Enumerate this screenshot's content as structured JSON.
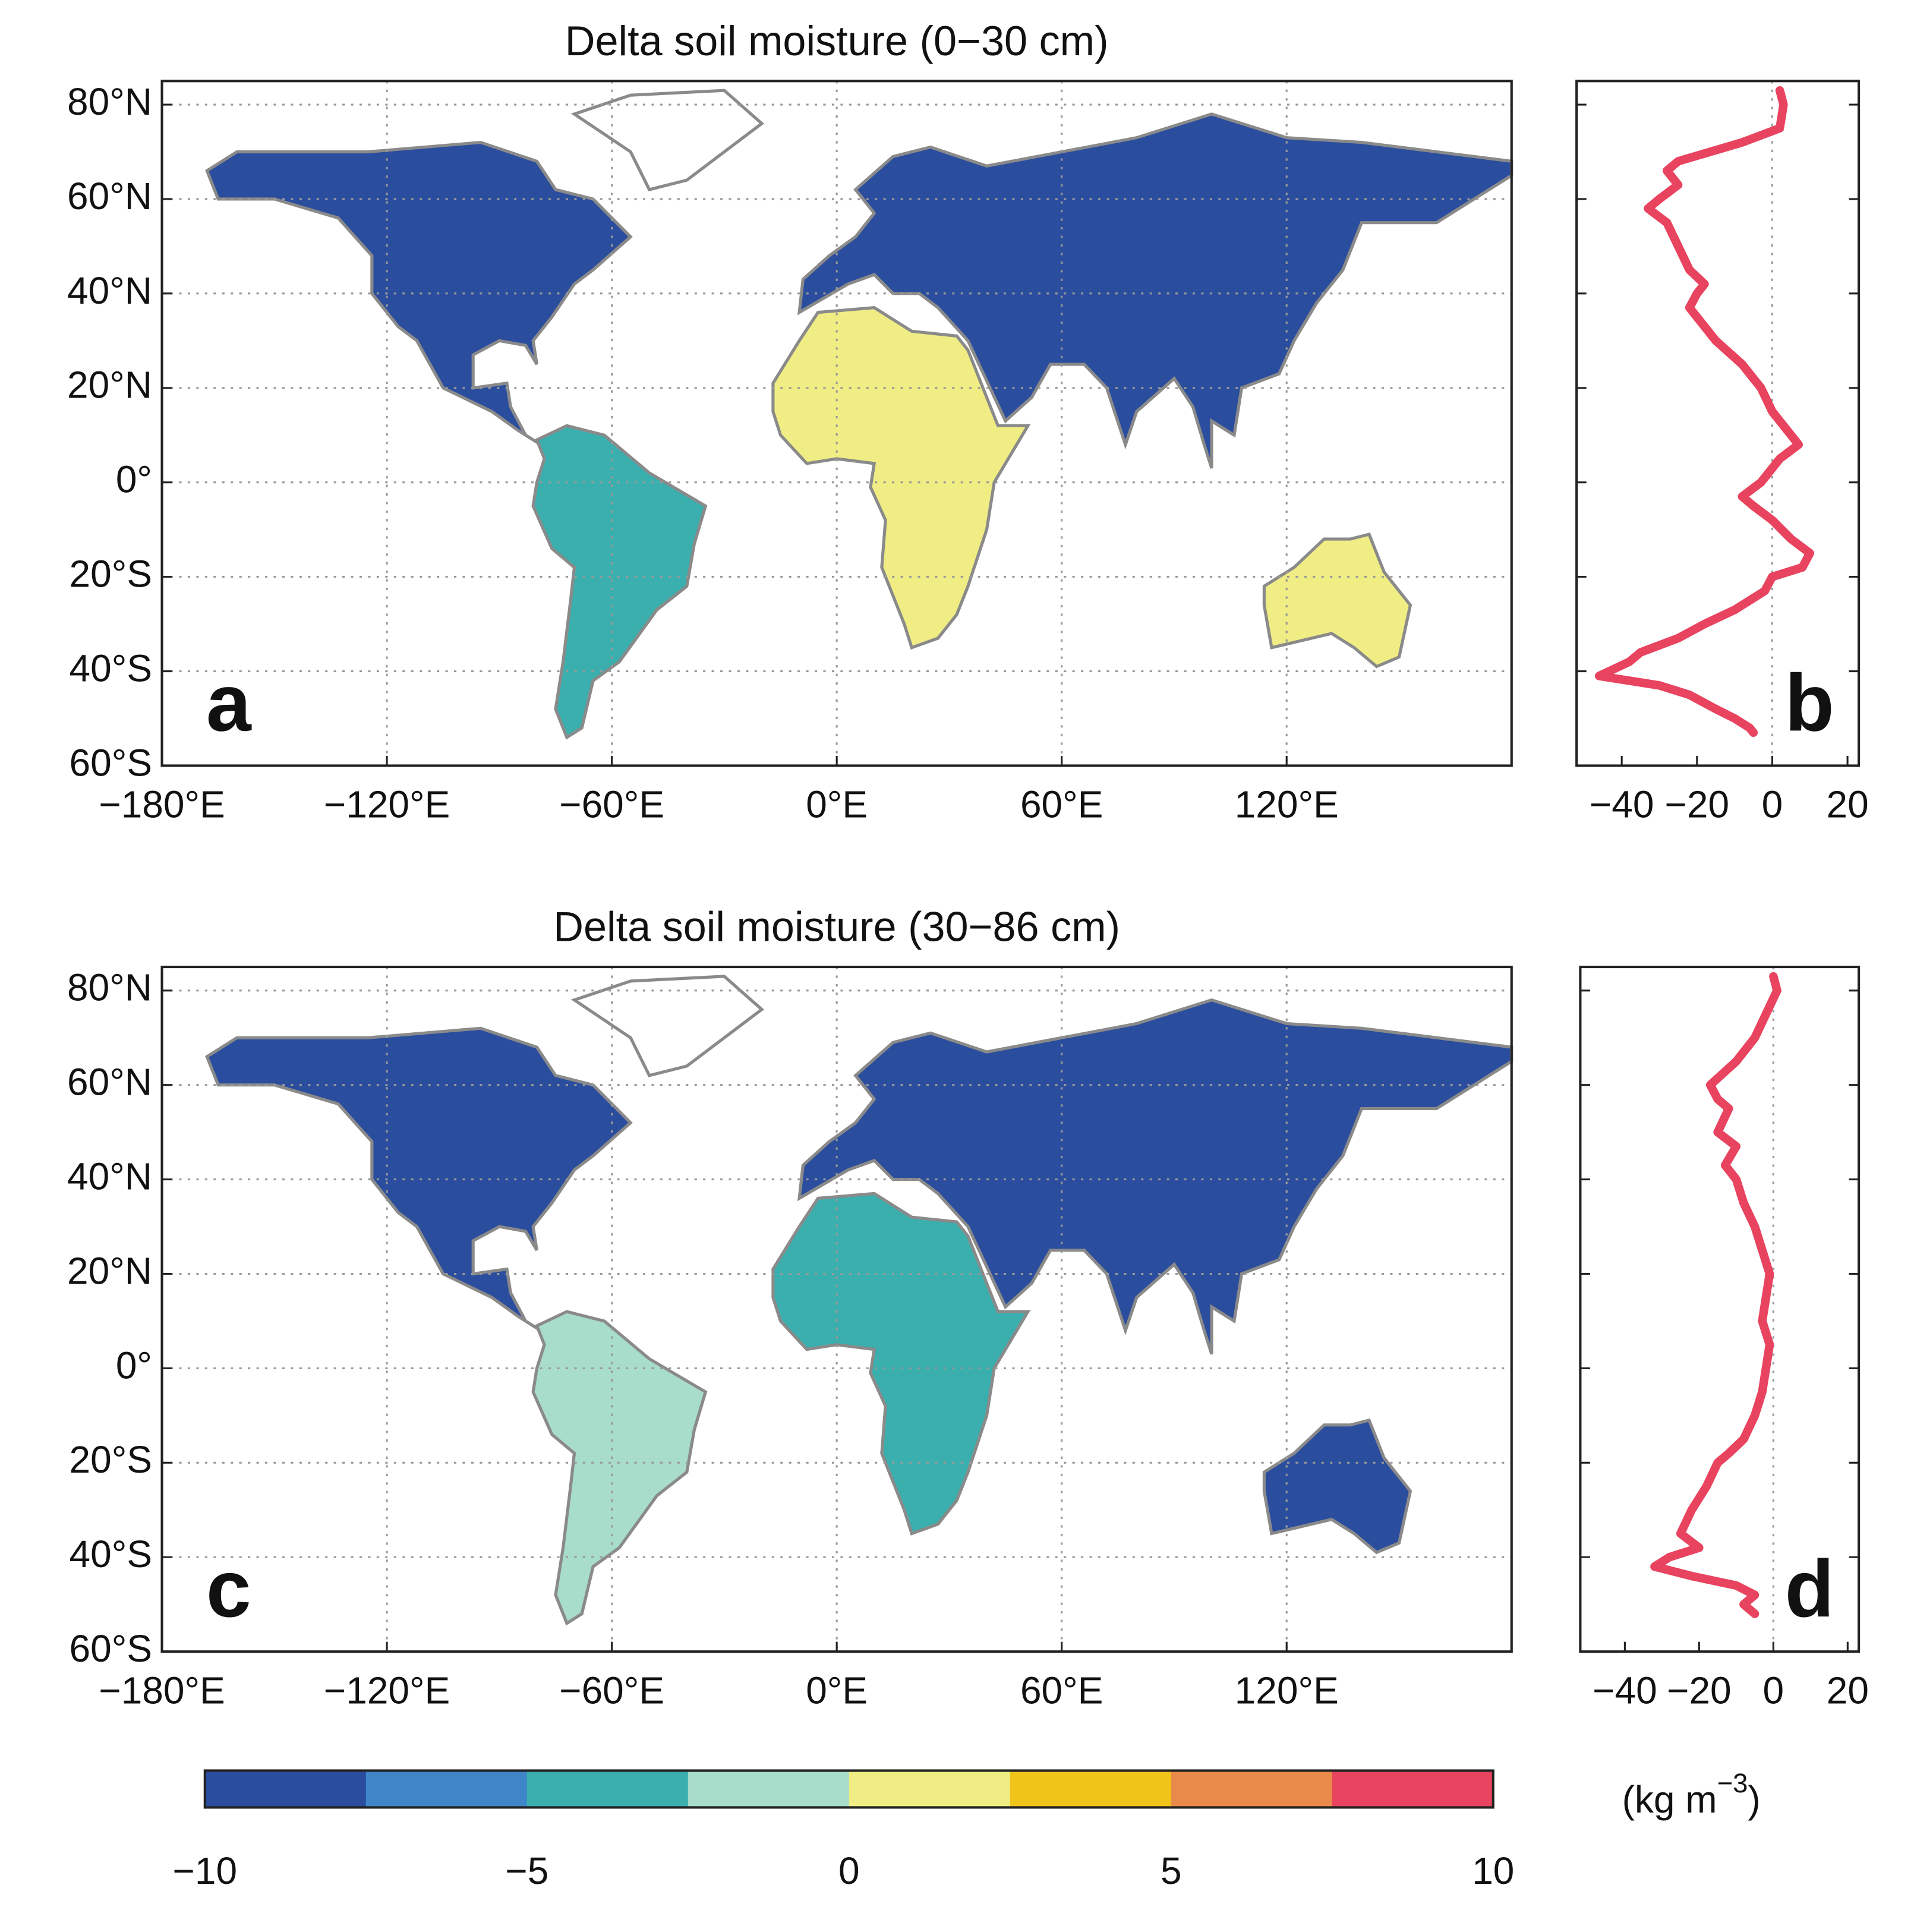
{
  "chart_data": [
    {
      "type": "map",
      "title": "Delta soil moisture (0−30 cm)",
      "panel_label": "a",
      "xlim": [
        -180,
        180
      ],
      "ylim": [
        -60,
        85
      ],
      "xticks": [
        {
          "value": -180,
          "label": "−180°E"
        },
        {
          "value": -120,
          "label": "−120°E"
        },
        {
          "value": -60,
          "label": "−60°E"
        },
        {
          "value": 0,
          "label": "0°E"
        },
        {
          "value": 60,
          "label": "60°E"
        },
        {
          "value": 120,
          "label": "120°E"
        }
      ],
      "yticks": [
        {
          "value": 80,
          "label": "80°N"
        },
        {
          "value": 60,
          "label": "60°N"
        },
        {
          "value": 40,
          "label": "40°N"
        },
        {
          "value": 20,
          "label": "20°N"
        },
        {
          "value": 0,
          "label": "0°"
        },
        {
          "value": -20,
          "label": "20°S"
        },
        {
          "value": -40,
          "label": "40°S"
        },
        {
          "value": -60,
          "label": "60°S"
        }
      ],
      "grid": true
    },
    {
      "type": "line",
      "panel_label": "b",
      "color": "#e8435f",
      "xlim": [
        -52,
        23
      ],
      "ylim": [
        -60,
        85
      ],
      "xticks": [
        {
          "value": -40,
          "label": "−40"
        },
        {
          "value": -20,
          "label": "−20"
        },
        0,
        20
      ],
      "yticks": [
        80,
        60,
        40,
        20,
        0,
        -20,
        -40,
        -60
      ],
      "y": [
        83,
        80,
        75,
        72,
        68,
        66,
        63,
        60,
        58,
        55,
        50,
        45,
        42,
        40,
        37,
        33,
        30,
        25,
        20,
        15,
        10,
        8,
        5,
        0,
        -3,
        -5,
        -8,
        -12,
        -15,
        -18,
        -20,
        -23,
        -27,
        -30,
        -33,
        -36,
        -38,
        -41,
        -43,
        -45,
        -48,
        -50,
        -52,
        -53
      ],
      "values": [
        2,
        3,
        2,
        -8,
        -25,
        -28,
        -25,
        -30,
        -33,
        -28,
        -25,
        -22,
        -18,
        -20,
        -22,
        -18,
        -15,
        -8,
        -3,
        0,
        5,
        7,
        2,
        -3,
        -8,
        -5,
        0,
        5,
        10,
        8,
        0,
        -2,
        -10,
        -18,
        -25,
        -35,
        -38,
        -46,
        -30,
        -22,
        -15,
        -10,
        -6,
        -5
      ]
    },
    {
      "type": "map",
      "title": "Delta soil moisture (30−86 cm)",
      "panel_label": "c",
      "xlim": [
        -180,
        180
      ],
      "ylim": [
        -60,
        85
      ],
      "xticks": [
        {
          "value": -180,
          "label": "−180°E"
        },
        {
          "value": -120,
          "label": "−120°E"
        },
        {
          "value": -60,
          "label": "−60°E"
        },
        {
          "value": 0,
          "label": "0°E"
        },
        {
          "value": 60,
          "label": "60°E"
        },
        {
          "value": 120,
          "label": "120°E"
        }
      ],
      "yticks": [
        {
          "value": 80,
          "label": "80°N"
        },
        {
          "value": 60,
          "label": "60°N"
        },
        {
          "value": 40,
          "label": "40°N"
        },
        {
          "value": 20,
          "label": "20°N"
        },
        {
          "value": 0,
          "label": "0°"
        },
        {
          "value": -20,
          "label": "20°S"
        },
        {
          "value": -40,
          "label": "40°S"
        },
        {
          "value": -60,
          "label": "60°S"
        }
      ],
      "grid": true
    },
    {
      "type": "line",
      "panel_label": "d",
      "color": "#e8435f",
      "xlim": [
        -52,
        23
      ],
      "ylim": [
        -60,
        85
      ],
      "xticks": [
        {
          "value": -40,
          "label": "−40"
        },
        {
          "value": -20,
          "label": "−20"
        },
        0,
        20
      ],
      "yticks": [
        80,
        60,
        40,
        20,
        0,
        -20,
        -40,
        -60
      ],
      "y": [
        83,
        80,
        75,
        70,
        65,
        60,
        57,
        55,
        50,
        47,
        43,
        40,
        35,
        30,
        25,
        20,
        15,
        10,
        5,
        0,
        -5,
        -10,
        -15,
        -18,
        -20,
        -25,
        -30,
        -35,
        -38,
        -40,
        -42,
        -44,
        -46,
        -48,
        -50,
        -52
      ],
      "values": [
        0,
        1,
        -2,
        -5,
        -10,
        -17,
        -15,
        -12,
        -15,
        -10,
        -13,
        -10,
        -8,
        -5,
        -3,
        -1,
        -2,
        -3,
        -1,
        -2,
        -3,
        -5,
        -8,
        -12,
        -15,
        -18,
        -22,
        -25,
        -20,
        -28,
        -32,
        -22,
        -10,
        -5,
        -8,
        -5
      ]
    },
    {
      "type": "colorbar",
      "lim": [
        -10,
        10
      ],
      "ticks": [
        {
          "value": -10,
          "label": "−10"
        },
        {
          "value": -5,
          "label": "−5"
        },
        0,
        5,
        10
      ],
      "colors": [
        "#2a4d9e",
        "#3f86c9",
        "#3aafad",
        "#a8dccb",
        "#f0ed84",
        "#f0c419",
        "#ea8a4a",
        "#e8435f"
      ],
      "unit_label": [
        "(kg m",
        "−3",
        ")"
      ]
    }
  ]
}
